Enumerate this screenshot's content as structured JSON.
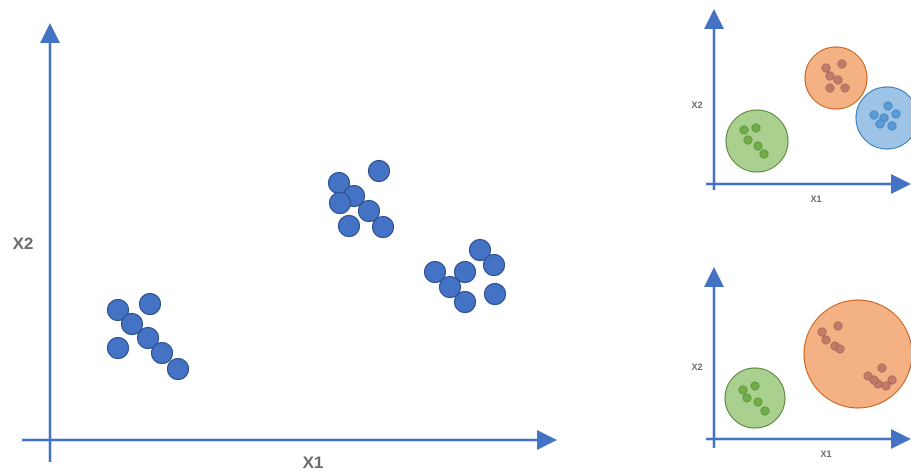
{
  "colors": {
    "axis": "#4472c4",
    "point_main": "#4472c4",
    "point_main_stroke": "#2f528f",
    "label": "#6b6b6b",
    "cluster_green_fill": "#a9d08e",
    "cluster_green_stroke": "#548235",
    "cluster_green_point": "#70ad47",
    "cluster_orange_fill": "#f4b183",
    "cluster_orange_stroke": "#c55a11",
    "cluster_orange_point": "#c07b6a",
    "cluster_blue_fill": "#9dc3e6",
    "cluster_blue_stroke": "#2e75b6",
    "cluster_blue_point": "#5b9bd5"
  },
  "main_plot": {
    "x_label": "X1",
    "y_label": "X2",
    "point_groups": [
      {
        "name": "group-bottom-left",
        "points": [
          [
            118,
            310
          ],
          [
            150,
            304
          ],
          [
            132,
            324
          ],
          [
            148,
            338
          ],
          [
            118,
            348
          ],
          [
            162,
            353
          ],
          [
            178,
            369
          ]
        ]
      },
      {
        "name": "group-top-middle",
        "points": [
          [
            339,
            183
          ],
          [
            379,
            171
          ],
          [
            354,
            196
          ],
          [
            340,
            203
          ],
          [
            369,
            211
          ],
          [
            349,
            226
          ],
          [
            383,
            227
          ]
        ]
      },
      {
        "name": "group-right",
        "points": [
          [
            435,
            272
          ],
          [
            480,
            250
          ],
          [
            465,
            272
          ],
          [
            494,
            265
          ],
          [
            450,
            287
          ],
          [
            465,
            302
          ],
          [
            495,
            294
          ]
        ]
      }
    ]
  },
  "plot_three_clusters": {
    "x_label": "X1",
    "y_label": "X2",
    "clusters": [
      {
        "color": "green",
        "points": [
          [
            744,
            130
          ],
          [
            756,
            128
          ],
          [
            748,
            140
          ],
          [
            758,
            146
          ],
          [
            764,
            154
          ]
        ]
      },
      {
        "color": "orange",
        "points": [
          [
            826,
            68
          ],
          [
            842,
            64
          ],
          [
            830,
            76
          ],
          [
            838,
            80
          ],
          [
            830,
            88
          ],
          [
            845,
            88
          ]
        ]
      },
      {
        "color": "blue",
        "points": [
          [
            874,
            115
          ],
          [
            888,
            106
          ],
          [
            884,
            118
          ],
          [
            896,
            114
          ],
          [
            880,
            124
          ],
          [
            892,
            126
          ]
        ]
      }
    ]
  },
  "plot_two_clusters": {
    "x_label": "X1",
    "y_label": "X2",
    "clusters": [
      {
        "color": "green",
        "points": [
          [
            743,
            390
          ],
          [
            755,
            386
          ],
          [
            747,
            398
          ],
          [
            758,
            402
          ],
          [
            765,
            411
          ]
        ]
      },
      {
        "color": "orange",
        "points": [
          [
            822,
            332
          ],
          [
            838,
            326
          ],
          [
            826,
            340
          ],
          [
            835,
            346
          ],
          [
            840,
            349
          ],
          [
            868,
            376
          ],
          [
            882,
            368
          ],
          [
            878,
            384
          ],
          [
            892,
            380
          ],
          [
            874,
            380
          ],
          [
            886,
            386
          ]
        ]
      }
    ]
  }
}
